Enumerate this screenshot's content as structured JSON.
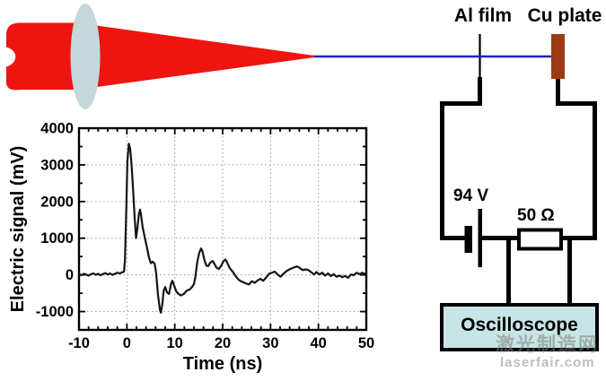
{
  "diagram": {
    "al_film_label": "Al film",
    "cu_plate_label": "Cu plate",
    "battery_label": "94 V",
    "resistor_label": "50 Ω",
    "oscilloscope_label": "Oscilloscope",
    "colors": {
      "laser_red": "#ee1410",
      "lens_fill": "#c4d8db",
      "beam_line_blue": "#2121cb",
      "cu_plate_brown": "#9c3a14",
      "oscilloscope_fill": "#c7e5e6",
      "wire_black": "#000000"
    }
  },
  "watermark": {
    "cn": "激光制造网",
    "en": "laserfair.com"
  },
  "chart_data": {
    "type": "line",
    "title": "",
    "xlabel": "Time (ns)",
    "ylabel": "Electric signal (mV)",
    "xlim": [
      -10,
      50
    ],
    "ylim": [
      -1500,
      4000
    ],
    "xticks": [
      -10,
      0,
      10,
      20,
      30,
      40,
      50
    ],
    "yticks": [
      -1000,
      0,
      1000,
      2000,
      3000,
      4000
    ],
    "x_minor_step": 2,
    "y_minor_step": 500,
    "grid": "dotted",
    "legend": "none",
    "series": [
      {
        "name": "electric-signal",
        "color": "#141414",
        "points": [
          [
            -10,
            20
          ],
          [
            -9.5,
            -10
          ],
          [
            -9,
            30
          ],
          [
            -8.5,
            10
          ],
          [
            -8,
            -20
          ],
          [
            -7.5,
            20
          ],
          [
            -7,
            40
          ],
          [
            -6.5,
            0
          ],
          [
            -6,
            30
          ],
          [
            -5.5,
            -10
          ],
          [
            -5,
            20
          ],
          [
            -4.5,
            50
          ],
          [
            -4,
            10
          ],
          [
            -3.5,
            40
          ],
          [
            -3,
            0
          ],
          [
            -2.5,
            30
          ],
          [
            -2,
            60
          ],
          [
            -1.5,
            40
          ],
          [
            -1,
            70
          ],
          [
            -0.6,
            90
          ],
          [
            -0.4,
            400
          ],
          [
            -0.1,
            1900
          ],
          [
            0.1,
            3100
          ],
          [
            0.4,
            3580
          ],
          [
            0.7,
            3420
          ],
          [
            1.0,
            2950
          ],
          [
            1.3,
            2300
          ],
          [
            1.6,
            1600
          ],
          [
            1.9,
            1000
          ],
          [
            2.2,
            1280
          ],
          [
            2.5,
            1650
          ],
          [
            2.75,
            1780
          ],
          [
            3.0,
            1600
          ],
          [
            3.3,
            1300
          ],
          [
            3.8,
            980
          ],
          [
            4.2,
            750
          ],
          [
            4.6,
            480
          ],
          [
            5.0,
            320
          ],
          [
            5.4,
            360
          ],
          [
            5.8,
            300
          ],
          [
            6.1,
            60
          ],
          [
            6.5,
            -550
          ],
          [
            6.9,
            -950
          ],
          [
            7.1,
            -1030
          ],
          [
            7.4,
            -800
          ],
          [
            7.7,
            -420
          ],
          [
            8.0,
            -330
          ],
          [
            8.4,
            -480
          ],
          [
            8.8,
            -520
          ],
          [
            9.2,
            -250
          ],
          [
            9.5,
            -160
          ],
          [
            9.9,
            -300
          ],
          [
            10.3,
            -450
          ],
          [
            10.8,
            -520
          ],
          [
            11.3,
            -560
          ],
          [
            11.9,
            -520
          ],
          [
            12.5,
            -430
          ],
          [
            13.1,
            -400
          ],
          [
            13.6,
            -330
          ],
          [
            14.0,
            -250
          ],
          [
            14.3,
            -60
          ],
          [
            14.7,
            350
          ],
          [
            15.1,
            600
          ],
          [
            15.5,
            720
          ],
          [
            15.8,
            640
          ],
          [
            16.2,
            400
          ],
          [
            16.6,
            250
          ],
          [
            17.0,
            240
          ],
          [
            17.4,
            330
          ],
          [
            17.9,
            380
          ],
          [
            18.3,
            300
          ],
          [
            18.7,
            200
          ],
          [
            19.2,
            160
          ],
          [
            19.7,
            250
          ],
          [
            20.2,
            380
          ],
          [
            20.6,
            420
          ],
          [
            21.0,
            320
          ],
          [
            21.5,
            180
          ],
          [
            22.1,
            90
          ],
          [
            22.7,
            -30
          ],
          [
            23.4,
            -140
          ],
          [
            24.1,
            -190
          ],
          [
            24.8,
            -230
          ],
          [
            25.5,
            -260
          ],
          [
            26.1,
            -170
          ],
          [
            26.7,
            -220
          ],
          [
            27.3,
            -150
          ],
          [
            27.9,
            -110
          ],
          [
            28.5,
            -160
          ],
          [
            29.1,
            -70
          ],
          [
            29.7,
            30
          ],
          [
            30.3,
            60
          ],
          [
            30.9,
            90
          ],
          [
            31.5,
            10
          ],
          [
            32.1,
            -50
          ],
          [
            32.7,
            30
          ],
          [
            33.4,
            110
          ],
          [
            34.1,
            160
          ],
          [
            34.8,
            200
          ],
          [
            35.5,
            230
          ],
          [
            36.1,
            190
          ],
          [
            36.7,
            130
          ],
          [
            37.3,
            150
          ],
          [
            37.9,
            130
          ],
          [
            38.5,
            70
          ],
          [
            39.1,
            10
          ],
          [
            39.6,
            80
          ],
          [
            40.2,
            10
          ],
          [
            40.8,
            60
          ],
          [
            41.4,
            -20
          ],
          [
            42.0,
            40
          ],
          [
            42.6,
            -30
          ],
          [
            43.2,
            20
          ],
          [
            43.8,
            -50
          ],
          [
            44.4,
            -20
          ],
          [
            45.0,
            -60
          ],
          [
            45.6,
            -30
          ],
          [
            46.2,
            -80
          ],
          [
            46.8,
            10
          ],
          [
            47.4,
            -10
          ],
          [
            48.0,
            60
          ],
          [
            48.6,
            20
          ],
          [
            49.2,
            60
          ],
          [
            49.6,
            30
          ],
          [
            50,
            40
          ]
        ]
      }
    ]
  }
}
